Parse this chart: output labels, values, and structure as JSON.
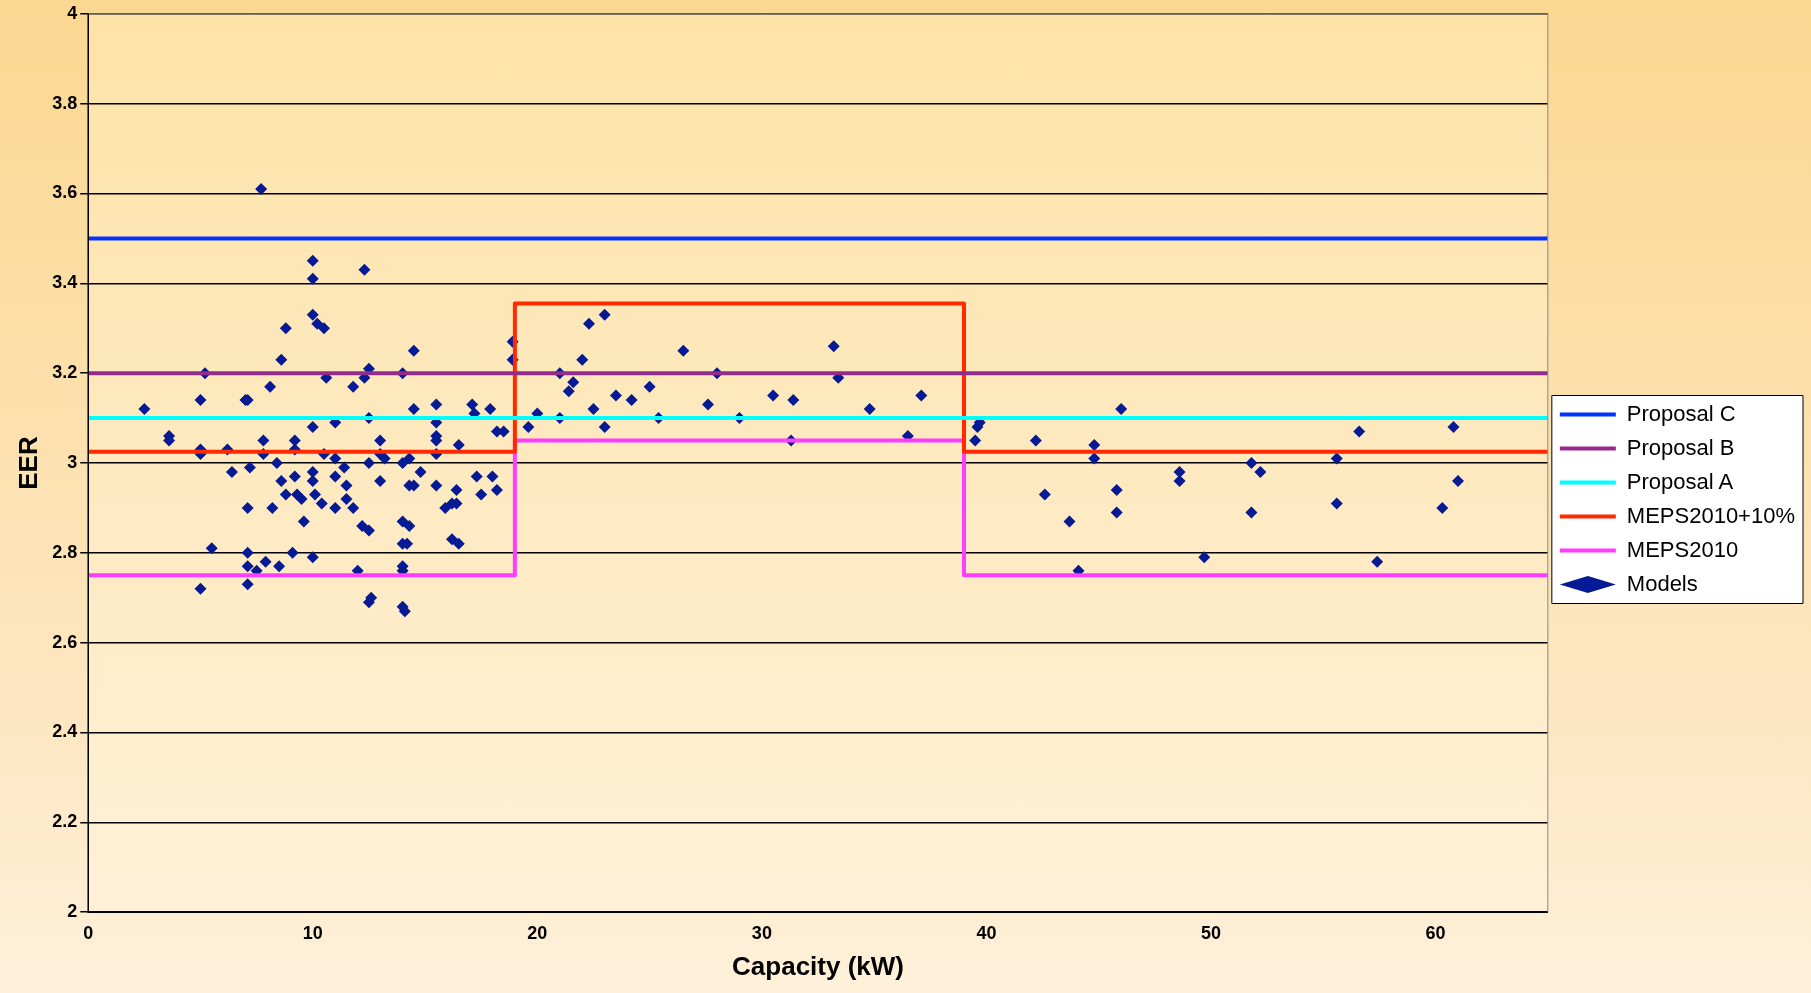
{
  "chart_data": {
    "type": "scatter",
    "xlabel": "Capacity (kW)",
    "ylabel": "EER",
    "xlim": [
      0,
      65
    ],
    "xticks": [
      0,
      10,
      20,
      30,
      40,
      50,
      60
    ],
    "ylim": [
      2,
      4
    ],
    "yticks": [
      2,
      2.2,
      2.4,
      2.6,
      2.8,
      3,
      3.2,
      3.4,
      3.6,
      3.8,
      4
    ],
    "grid": "y",
    "legend": "right",
    "series": [
      {
        "name": "Proposal C",
        "type": "line",
        "color": "#0033ff",
        "x": [
          0,
          65
        ],
        "values": [
          3.5,
          3.5
        ]
      },
      {
        "name": "Proposal B",
        "type": "line",
        "color": "#922b8e",
        "x": [
          0,
          65
        ],
        "values": [
          3.2,
          3.2
        ]
      },
      {
        "name": "Proposal A",
        "type": "line",
        "color": "#00ffff",
        "x": [
          0,
          65
        ],
        "values": [
          3.1,
          3.1
        ]
      },
      {
        "name": "MEPS2010+10%",
        "type": "line",
        "color": "#ff2a00",
        "x": [
          0,
          19,
          19,
          39,
          39,
          65
        ],
        "values": [
          3.025,
          3.025,
          3.355,
          3.355,
          3.025,
          3.025
        ]
      },
      {
        "name": "MEPS2010",
        "type": "line",
        "color": "#ff3dff",
        "x": [
          0,
          19,
          19,
          39,
          39,
          65
        ],
        "values": [
          2.75,
          2.75,
          3.05,
          3.05,
          2.75,
          2.75
        ]
      },
      {
        "name": "Models",
        "type": "scatter",
        "marker": "diamond",
        "color": "#061a96",
        "x": [
          2.5,
          3.6,
          3.6,
          5,
          5.2,
          5,
          5,
          5,
          5.5,
          6.2,
          6.4,
          7,
          7.1,
          7.2,
          7.1,
          7.1,
          7.1,
          7.1,
          7.5,
          7.7,
          7.8,
          7.8,
          7.9,
          8.1,
          8.2,
          8.4,
          8.5,
          8.6,
          8.6,
          8.8,
          8.8,
          9.1,
          9.2,
          9.2,
          9.2,
          9.3,
          9.5,
          9.6,
          10,
          10,
          10,
          10.2,
          10.5,
          10,
          10,
          10,
          10.1,
          10,
          10.6,
          10.5,
          10.4,
          11,
          11,
          11,
          11,
          11.4,
          11.5,
          11.5,
          11.8,
          11.8,
          12,
          12.3,
          12.3,
          12.5,
          12.5,
          12.5,
          12.5,
          12.6,
          12.5,
          12.2,
          13,
          13,
          13.2,
          13,
          14,
          14.5,
          14.5,
          14,
          14.3,
          14.5,
          14.3,
          14.8,
          14,
          14.3,
          14.2,
          14,
          14,
          14,
          14,
          14.1,
          15.5,
          15.5,
          15.5,
          15.5,
          15.5,
          15.5,
          15.9,
          16.2,
          16.5,
          16.4,
          16.2,
          16.5,
          16.4,
          17.1,
          17.2,
          17.3,
          17.5,
          17.9,
          18,
          18.2,
          18.2,
          18.5,
          18.9,
          18.9,
          19.6,
          20,
          21,
          21,
          21.4,
          21.6,
          22,
          22.3,
          22.5,
          23,
          23,
          23.5,
          24.2,
          25,
          25.4,
          26.5,
          27.6,
          28,
          29,
          30.5,
          31.3,
          31.4,
          33.2,
          33.4,
          34.8,
          36.5,
          37.1,
          39.5,
          39.6,
          39.7,
          42.2,
          42.6,
          43.7,
          44.1,
          44.8,
          44.8,
          45.8,
          45.8,
          46,
          48.6,
          48.6,
          49.7,
          51.8,
          51.8,
          52.2,
          55.6,
          55.6,
          56.6,
          57.4,
          60.3,
          60.8,
          61
        ],
        "values": [
          3.12,
          3.05,
          3.06,
          3.14,
          3.2,
          3.02,
          3.03,
          2.72,
          2.81,
          3.03,
          2.98,
          3.14,
          3.14,
          2.99,
          2.9,
          2.8,
          2.77,
          2.73,
          2.76,
          3.61,
          3.05,
          3.02,
          2.78,
          3.17,
          2.9,
          3,
          2.77,
          3.23,
          2.96,
          3.3,
          2.93,
          2.8,
          3.05,
          3.03,
          2.97,
          2.93,
          2.92,
          2.87,
          3.45,
          3.41,
          3.33,
          3.31,
          3.3,
          3.08,
          2.98,
          2.96,
          2.93,
          2.79,
          3.19,
          3.02,
          2.91,
          3.09,
          3.01,
          2.97,
          2.9,
          2.99,
          2.95,
          2.92,
          2.9,
          3.17,
          2.76,
          3.43,
          3.19,
          3.21,
          3.1,
          3,
          2.85,
          2.7,
          2.69,
          2.86,
          3.05,
          3.02,
          3.01,
          2.96,
          3.2,
          3.25,
          3.12,
          3,
          2.95,
          2.95,
          3.01,
          2.98,
          2.87,
          2.86,
          2.82,
          2.82,
          2.77,
          2.76,
          2.68,
          2.67,
          3.13,
          3.09,
          3.06,
          3.05,
          3.02,
          2.95,
          2.9,
          2.91,
          3.04,
          2.94,
          2.83,
          2.82,
          2.91,
          3.13,
          3.11,
          2.97,
          2.93,
          3.12,
          2.97,
          2.94,
          3.07,
          3.07,
          3.27,
          3.23,
          3.08,
          3.11,
          3.2,
          3.1,
          3.16,
          3.18,
          3.23,
          3.31,
          3.12,
          3.33,
          3.08,
          3.15,
          3.14,
          3.17,
          3.1,
          3.25,
          3.13,
          3.2,
          3.1,
          3.15,
          3.05,
          3.14,
          3.26,
          3.19,
          3.12,
          3.06,
          3.15,
          3.05,
          3.08,
          3.09,
          3.05,
          2.93,
          2.87,
          2.76,
          3.04,
          3.01,
          2.94,
          2.89,
          3.12,
          2.98,
          2.96,
          2.79,
          3,
          2.89,
          2.98,
          3.01,
          2.91,
          3.07,
          2.78,
          2.9,
          3.08,
          2.96
        ]
      }
    ]
  }
}
